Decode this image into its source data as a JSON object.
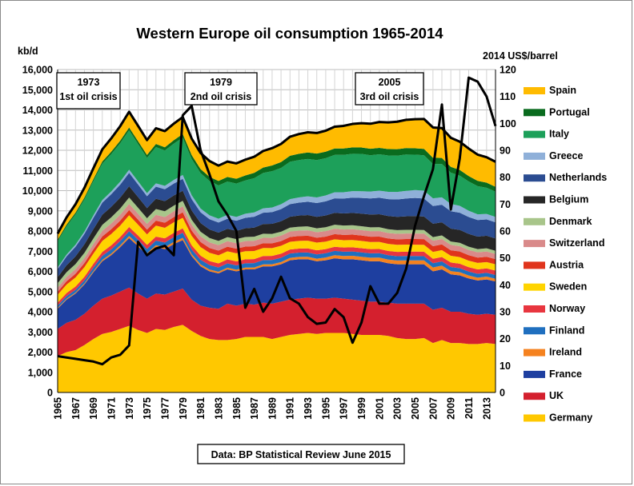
{
  "chart_data": {
    "type": "area",
    "title": "Western Europe oil consumption 1965-2014",
    "ylabel_left": "kb/d",
    "ylabel_right": "2014 US$/barrel",
    "source": "Data: BP Statistical Review June 2015",
    "ylim_left": [
      0,
      16000
    ],
    "ylim_right": [
      0,
      120
    ],
    "yticks_left": [
      "0",
      "1,000",
      "2,000",
      "3,000",
      "4,000",
      "5,000",
      "6,000",
      "7,000",
      "8,000",
      "9,000",
      "10,000",
      "11,000",
      "12,000",
      "13,000",
      "14,000",
      "15,000",
      "16,000"
    ],
    "yticks_right": [
      "0",
      "10",
      "20",
      "30",
      "40",
      "50",
      "60",
      "70",
      "80",
      "90",
      "100",
      "110",
      "120"
    ],
    "grid": true,
    "stacking": "stacked",
    "legend_position": "right",
    "x": [
      1965,
      1966,
      1967,
      1968,
      1969,
      1970,
      1971,
      1972,
      1973,
      1974,
      1975,
      1976,
      1977,
      1978,
      1979,
      1980,
      1981,
      1982,
      1983,
      1984,
      1985,
      1986,
      1987,
      1988,
      1989,
      1990,
      1991,
      1992,
      1993,
      1994,
      1995,
      1996,
      1997,
      1998,
      1999,
      2000,
      2001,
      2002,
      2003,
      2004,
      2005,
      2006,
      2007,
      2008,
      2009,
      2010,
      2011,
      2012,
      2013,
      2014
    ],
    "xtick_labels": [
      "1965",
      "1967",
      "1969",
      "1971",
      "1973",
      "1975",
      "1977",
      "1979",
      "1981",
      "1983",
      "1985",
      "1987",
      "1989",
      "1991",
      "1993",
      "1995",
      "1997",
      "1999",
      "2001",
      "2003",
      "2005",
      "2007",
      "2009",
      "2011",
      "2013"
    ],
    "series": [
      {
        "name": "Germany",
        "color": "#FFC800",
        "values": [
          1800,
          2000,
          2100,
          2350,
          2650,
          2900,
          3000,
          3150,
          3300,
          3100,
          2950,
          3150,
          3100,
          3250,
          3350,
          3050,
          2800,
          2650,
          2600,
          2600,
          2650,
          2750,
          2750,
          2750,
          2650,
          2750,
          2850,
          2900,
          2950,
          2900,
          2950,
          2950,
          2950,
          2900,
          2850,
          2850,
          2850,
          2800,
          2700,
          2650,
          2650,
          2700,
          2450,
          2600,
          2450,
          2450,
          2400,
          2400,
          2450,
          2400
        ]
      },
      {
        "name": "UK",
        "color": "#D4202E",
        "values": [
          1350,
          1450,
          1500,
          1550,
          1650,
          1750,
          1800,
          1850,
          1900,
          1800,
          1700,
          1750,
          1750,
          1750,
          1800,
          1550,
          1500,
          1550,
          1550,
          1800,
          1650,
          1650,
          1600,
          1700,
          1750,
          1750,
          1750,
          1750,
          1750,
          1750,
          1700,
          1750,
          1700,
          1700,
          1700,
          1650,
          1650,
          1650,
          1700,
          1750,
          1750,
          1700,
          1650,
          1600,
          1550,
          1550,
          1500,
          1450,
          1450,
          1450
        ]
      },
      {
        "name": "France",
        "color": "#1E3FA0",
        "values": [
          1000,
          1150,
          1300,
          1450,
          1650,
          1850,
          2000,
          2200,
          2450,
          2350,
          2150,
          2300,
          2250,
          2350,
          2400,
          2150,
          1950,
          1800,
          1750,
          1700,
          1700,
          1700,
          1750,
          1800,
          1850,
          1850,
          1950,
          1950,
          1900,
          1850,
          1900,
          1950,
          1950,
          2000,
          2000,
          2000,
          2000,
          1950,
          1950,
          1950,
          1950,
          1950,
          1900,
          1900,
          1850,
          1800,
          1750,
          1700,
          1700,
          1650
        ]
      },
      {
        "name": "Ireland",
        "color": "#F5821F",
        "values": [
          40,
          45,
          50,
          55,
          60,
          70,
          80,
          85,
          100,
          95,
          90,
          95,
          100,
          110,
          115,
          100,
          95,
          90,
          85,
          85,
          85,
          90,
          95,
          95,
          100,
          110,
          120,
          120,
          125,
          130,
          140,
          150,
          160,
          170,
          175,
          180,
          185,
          185,
          190,
          195,
          195,
          195,
          195,
          185,
          165,
          160,
          145,
          140,
          140,
          135
        ]
      },
      {
        "name": "Finland",
        "color": "#1F6FBF",
        "values": [
          120,
          130,
          140,
          160,
          180,
          200,
          210,
          220,
          240,
          230,
          220,
          230,
          230,
          240,
          250,
          240,
          230,
          220,
          210,
          210,
          210,
          210,
          215,
          215,
          215,
          215,
          215,
          210,
          210,
          210,
          210,
          215,
          215,
          215,
          215,
          215,
          215,
          215,
          215,
          215,
          215,
          210,
          210,
          210,
          205,
          200,
          195,
          190,
          190,
          185
        ]
      },
      {
        "name": "Norway",
        "color": "#E8363F",
        "values": [
          140,
          150,
          160,
          170,
          180,
          190,
          200,
          200,
          210,
          200,
          200,
          200,
          210,
          210,
          220,
          200,
          200,
          200,
          200,
          200,
          200,
          200,
          200,
          200,
          200,
          200,
          200,
          200,
          205,
          205,
          205,
          205,
          210,
          210,
          210,
          210,
          210,
          210,
          210,
          215,
          220,
          220,
          220,
          220,
          220,
          220,
          220,
          220,
          220,
          220
        ]
      },
      {
        "name": "Sweden",
        "color": "#FFD400",
        "values": [
          390,
          420,
          450,
          480,
          510,
          550,
          560,
          560,
          580,
          540,
          520,
          540,
          520,
          520,
          520,
          470,
          430,
          410,
          400,
          400,
          400,
          400,
          400,
          400,
          390,
          390,
          380,
          380,
          380,
          380,
          370,
          370,
          360,
          360,
          360,
          350,
          350,
          350,
          350,
          350,
          340,
          340,
          340,
          340,
          330,
          330,
          320,
          320,
          310,
          310
        ]
      },
      {
        "name": "Austria",
        "color": "#E0341C",
        "values": [
          150,
          165,
          180,
          195,
          210,
          225,
          240,
          250,
          260,
          250,
          240,
          250,
          250,
          260,
          270,
          260,
          250,
          240,
          235,
          230,
          230,
          230,
          235,
          235,
          235,
          235,
          240,
          240,
          245,
          245,
          250,
          255,
          260,
          265,
          265,
          265,
          265,
          270,
          275,
          280,
          285,
          285,
          285,
          280,
          275,
          275,
          270,
          265,
          265,
          260
        ]
      },
      {
        "name": "Switzerland",
        "color": "#D98A8A",
        "values": [
          200,
          215,
          230,
          245,
          260,
          275,
          285,
          290,
          300,
          290,
          280,
          285,
          285,
          290,
          300,
          290,
          280,
          275,
          270,
          270,
          270,
          270,
          270,
          270,
          270,
          270,
          270,
          270,
          270,
          270,
          270,
          270,
          270,
          270,
          270,
          270,
          270,
          270,
          270,
          270,
          270,
          270,
          270,
          270,
          265,
          265,
          260,
          260,
          260,
          255
        ]
      },
      {
        "name": "Denmark",
        "color": "#A8C58A",
        "values": [
          220,
          235,
          250,
          265,
          280,
          295,
          305,
          310,
          320,
          300,
          285,
          290,
          285,
          280,
          270,
          250,
          230,
          220,
          210,
          205,
          205,
          205,
          205,
          200,
          195,
          195,
          195,
          195,
          195,
          195,
          195,
          195,
          195,
          195,
          195,
          195,
          195,
          190,
          185,
          185,
          185,
          180,
          180,
          175,
          170,
          165,
          165,
          160,
          160,
          155
        ]
      },
      {
        "name": "Belgium",
        "color": "#262626",
        "values": [
          300,
          340,
          380,
          420,
          460,
          500,
          520,
          540,
          560,
          530,
          500,
          510,
          500,
          500,
          500,
          460,
          430,
          420,
          410,
          410,
          410,
          430,
          450,
          480,
          500,
          520,
          540,
          550,
          560,
          570,
          580,
          590,
          600,
          610,
          620,
          630,
          640,
          650,
          660,
          670,
          680,
          670,
          660,
          650,
          640,
          640,
          630,
          620,
          620,
          610
        ]
      },
      {
        "name": "Netherlands",
        "color": "#2B4C91",
        "values": [
          400,
          440,
          480,
          520,
          560,
          600,
          620,
          640,
          660,
          620,
          590,
          600,
          590,
          590,
          590,
          560,
          530,
          510,
          500,
          500,
          500,
          520,
          540,
          560,
          580,
          600,
          620,
          640,
          660,
          680,
          700,
          720,
          740,
          760,
          780,
          800,
          820,
          840,
          860,
          880,
          900,
          890,
          880,
          870,
          860,
          850,
          840,
          820,
          810,
          800
        ]
      },
      {
        "name": "Greece",
        "color": "#8FB0D9",
        "values": [
          80,
          90,
          100,
          110,
          120,
          130,
          140,
          150,
          160,
          155,
          150,
          160,
          170,
          180,
          190,
          190,
          190,
          190,
          190,
          190,
          190,
          200,
          210,
          220,
          230,
          240,
          250,
          260,
          270,
          280,
          290,
          300,
          310,
          320,
          330,
          340,
          350,
          360,
          370,
          380,
          390,
          390,
          380,
          370,
          360,
          340,
          310,
          280,
          270,
          270
        ]
      },
      {
        "name": "Italy",
        "color": "#1DA05A",
        "values": [
          1300,
          1400,
          1500,
          1600,
          1700,
          1800,
          1850,
          1900,
          1950,
          1850,
          1750,
          1800,
          1750,
          1800,
          1850,
          1800,
          1750,
          1700,
          1650,
          1650,
          1650,
          1650,
          1700,
          1750,
          1800,
          1800,
          1850,
          1850,
          1850,
          1850,
          1850,
          1850,
          1850,
          1850,
          1850,
          1800,
          1800,
          1800,
          1800,
          1800,
          1750,
          1750,
          1700,
          1650,
          1550,
          1500,
          1450,
          1400,
          1300,
          1250
        ]
      },
      {
        "name": "Portugal",
        "color": "#0A6B1E",
        "values": [
          80,
          85,
          90,
          95,
          100,
          110,
          120,
          130,
          140,
          140,
          140,
          150,
          160,
          170,
          180,
          190,
          200,
          210,
          220,
          230,
          240,
          250,
          260,
          270,
          280,
          290,
          300,
          310,
          320,
          320,
          320,
          320,
          320,
          320,
          320,
          320,
          320,
          320,
          320,
          320,
          320,
          320,
          310,
          300,
          290,
          280,
          270,
          260,
          250,
          240
        ]
      },
      {
        "name": "Spain",
        "color": "#FFBB00",
        "values": [
          300,
          360,
          420,
          480,
          540,
          600,
          660,
          720,
          780,
          760,
          740,
          780,
          800,
          820,
          840,
          820,
          800,
          780,
          760,
          760,
          760,
          780,
          800,
          820,
          860,
          900,
          940,
          980,
          1000,
          1020,
          1040,
          1080,
          1120,
          1160,
          1200,
          1240,
          1280,
          1320,
          1360,
          1400,
          1440,
          1480,
          1500,
          1480,
          1440,
          1400,
          1360,
          1300,
          1260,
          1240
        ]
      }
    ],
    "line_series": {
      "name": "2014 US$/barrel",
      "color": "#000000",
      "axis": "right",
      "values": [
        13.5,
        13,
        12.5,
        12,
        11.5,
        10.5,
        13,
        14,
        17.5,
        56,
        51,
        53.5,
        54.5,
        51,
        103,
        106.5,
        90,
        81,
        71,
        66,
        60,
        31.5,
        38.5,
        30,
        35,
        43,
        35,
        33,
        28,
        25.5,
        26,
        31,
        28,
        18.5,
        26,
        39.5,
        33,
        33,
        37,
        46,
        62,
        73,
        83,
        107,
        68,
        87,
        117,
        115.5,
        110,
        99
      ]
    },
    "annotations": [
      {
        "year": "1973",
        "text": "1st oil crisis"
      },
      {
        "year": "1979",
        "text": "2nd oil crisis"
      },
      {
        "year": "2005",
        "text": "3rd oil crisis"
      }
    ]
  }
}
